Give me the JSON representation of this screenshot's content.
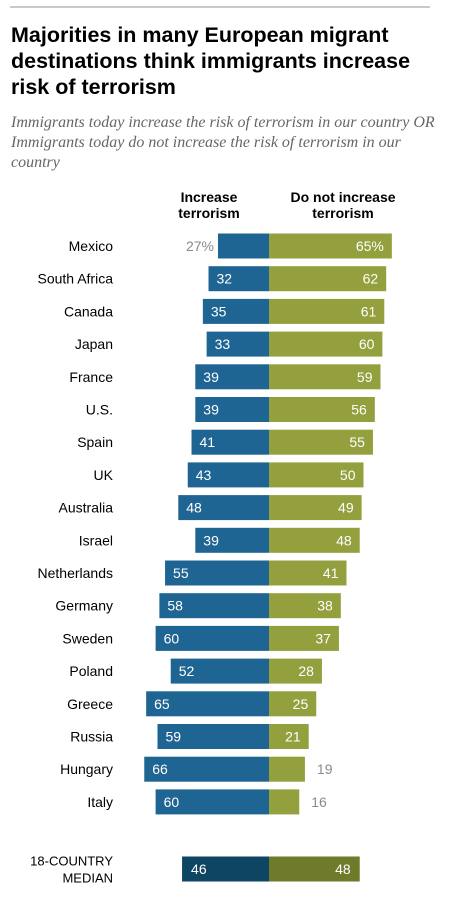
{
  "title": "Majorities in many European migrant destinations think immigrants increase risk of terrorism",
  "subtitle": "Immigrants today increase the risk of terrorism in our country OR Immigrants today do not increase the risk of terrorism in our country",
  "colors": {
    "increase": "#1f6593",
    "not_increase": "#949f3d",
    "median_increase": "#0d4563",
    "median_not_increase": "#6f7a2b",
    "outside_label": "#8a8a8a"
  },
  "chart_data": {
    "type": "bar",
    "orientation": "diverging-horizontal",
    "title": "Majorities in many European migrant destinations think immigrants increase risk of terrorism",
    "subtitle": "Immigrants today increase the risk of terrorism in our country OR Immigrants today do not increase the risk of terrorism in our country",
    "unit": "%",
    "categories": [
      "Mexico",
      "South Africa",
      "Canada",
      "Japan",
      "France",
      "U.S.",
      "Spain",
      "UK",
      "Australia",
      "Israel",
      "Netherlands",
      "Germany",
      "Sweden",
      "Poland",
      "Greece",
      "Russia",
      "Hungary",
      "Italy"
    ],
    "series": [
      {
        "name": "Increase terrorism",
        "values": [
          27,
          32,
          35,
          33,
          39,
          39,
          41,
          43,
          48,
          39,
          55,
          58,
          60,
          52,
          65,
          59,
          66,
          60
        ]
      },
      {
        "name": "Do not increase terrorism",
        "values": [
          65,
          62,
          61,
          60,
          59,
          56,
          55,
          50,
          49,
          48,
          41,
          38,
          37,
          28,
          25,
          21,
          19,
          16
        ]
      }
    ],
    "value_labels": {
      "increase": [
        "27%",
        "32",
        "35",
        "33",
        "39",
        "39",
        "41",
        "43",
        "48",
        "39",
        "55",
        "58",
        "60",
        "52",
        "65",
        "59",
        "66",
        "60"
      ],
      "not_increase": [
        "65%",
        "62",
        "61",
        "60",
        "59",
        "56",
        "55",
        "50",
        "49",
        "48",
        "41",
        "38",
        "37",
        "28",
        "25",
        "21",
        "19",
        "16"
      ]
    },
    "median": {
      "label_lines": [
        "18-COUNTRY",
        "MEDIAN"
      ],
      "increase": 46,
      "not_increase": 48,
      "increase_label": "46",
      "not_increase_label": "48"
    },
    "column_headers": {
      "increase": "Increase terrorism",
      "not_increase": "Do not increase terrorism"
    }
  }
}
